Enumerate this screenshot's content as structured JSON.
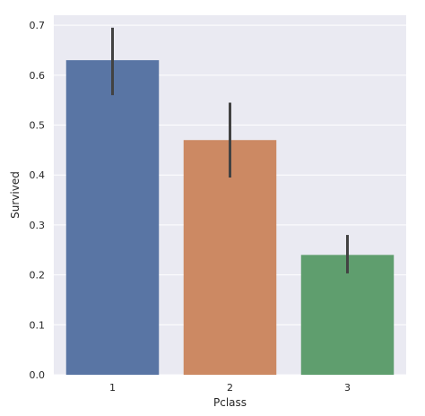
{
  "chart_data": {
    "type": "bar",
    "xlabel": "Pclass",
    "ylabel": "Survived",
    "categories": [
      "1",
      "2",
      "3"
    ],
    "values": [
      0.63,
      0.47,
      0.24
    ],
    "error_low": [
      0.56,
      0.395,
      0.203
    ],
    "error_high": [
      0.695,
      0.545,
      0.28
    ],
    "colors": [
      "#5975a4",
      "#cc8963",
      "#5f9e6e"
    ],
    "error_color": "#424242",
    "ylim": [
      0,
      0.72
    ],
    "yticks": [
      "0.0",
      "0.1",
      "0.2",
      "0.3",
      "0.4",
      "0.5",
      "0.6",
      "0.7"
    ],
    "grid": true,
    "background": "#eaeaf2"
  }
}
